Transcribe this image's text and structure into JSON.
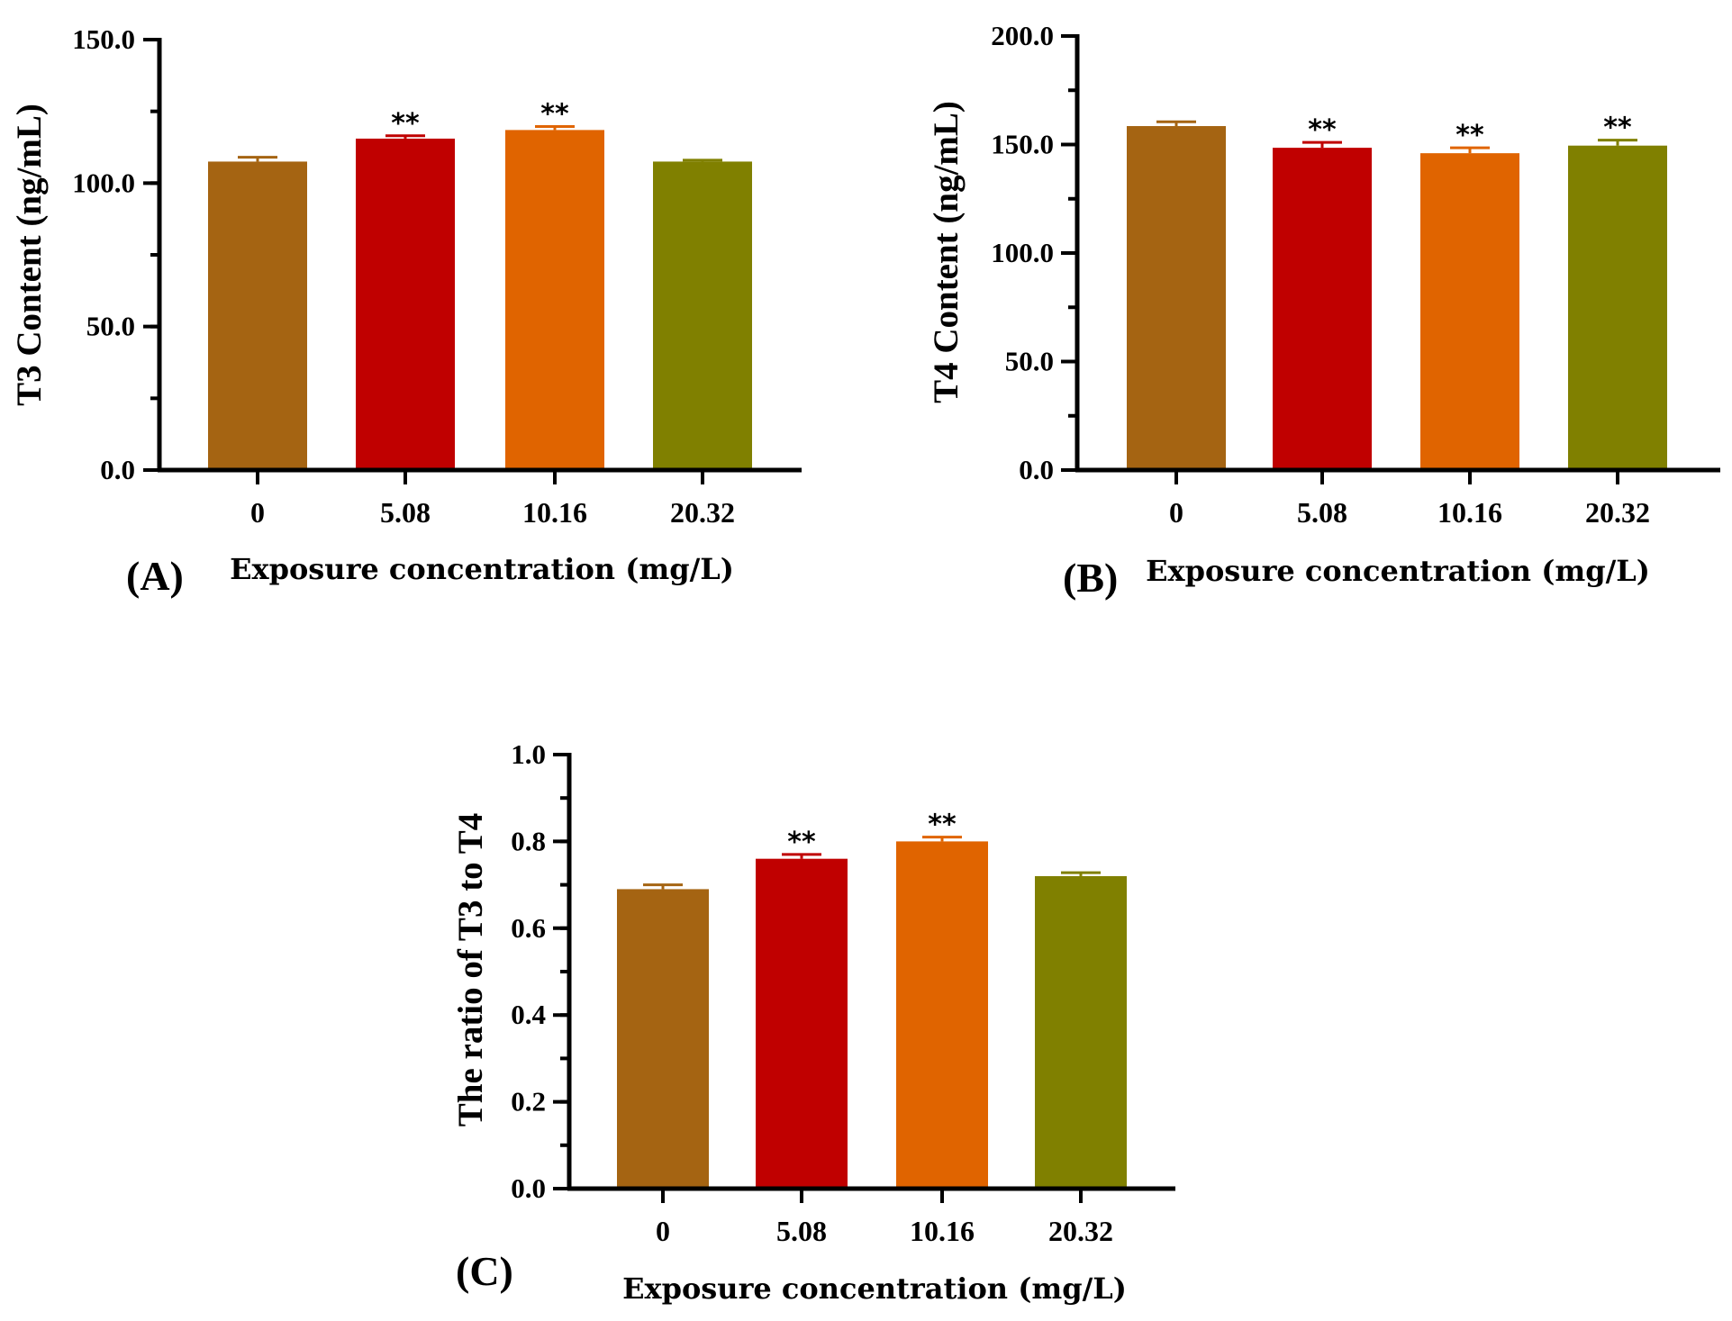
{
  "chart_data": [
    {
      "type": "bar",
      "panel": "(A)",
      "categories": [
        "0",
        "5.08",
        "10.16",
        "20.32"
      ],
      "values": [
        107.5,
        115.5,
        118.5,
        107.5
      ],
      "errors": [
        1.5,
        1.0,
        1.2,
        0.5
      ],
      "significance": [
        "",
        "**",
        "**",
        ""
      ],
      "colors": [
        "#A56412",
        "#C00000",
        "#E06400",
        "#808000"
      ],
      "xlabel": "Exposure concentration (mg/L)",
      "ylabel": "T3 Content (ng/mL)",
      "ylim": [
        0,
        150
      ],
      "yticks": [
        "0.0",
        "50.0",
        "100.0",
        "150.0"
      ],
      "ytick_values": [
        0,
        50,
        100,
        150
      ],
      "minor_step": 25
    },
    {
      "type": "bar",
      "panel": "(B)",
      "categories": [
        "0",
        "5.08",
        "10.16",
        "20.32"
      ],
      "values": [
        158.5,
        148.5,
        146.0,
        149.5
      ],
      "errors": [
        2.0,
        2.5,
        2.5,
        2.5
      ],
      "significance": [
        "",
        "**",
        "**",
        "**"
      ],
      "colors": [
        "#A56412",
        "#C00000",
        "#E06400",
        "#808000"
      ],
      "xlabel": "Exposure concentration (mg/L)",
      "ylabel": "T4 Content (ng/mL)",
      "ylim": [
        0,
        200
      ],
      "yticks": [
        "0.0",
        "50.0",
        "100.0",
        "150.0",
        "200.0"
      ],
      "ytick_values": [
        0,
        50,
        100,
        150,
        200
      ],
      "minor_step": 25
    },
    {
      "type": "bar",
      "panel": "(C)",
      "categories": [
        "0",
        "5.08",
        "10.16",
        "20.32"
      ],
      "values": [
        0.69,
        0.76,
        0.8,
        0.72
      ],
      "errors": [
        0.01,
        0.01,
        0.01,
        0.008
      ],
      "significance": [
        "",
        "**",
        "**",
        ""
      ],
      "colors": [
        "#A56412",
        "#C00000",
        "#E06400",
        "#808000"
      ],
      "xlabel": "Exposure concentration (mg/L)",
      "ylabel": "The ratio of T3 to T4",
      "ylim": [
        0,
        1.0
      ],
      "yticks": [
        "0.0",
        "0.2",
        "0.4",
        "0.6",
        "0.8",
        "1.0"
      ],
      "ytick_values": [
        0,
        0.2,
        0.4,
        0.6,
        0.8,
        1.0
      ],
      "minor_step": 0.1
    }
  ]
}
